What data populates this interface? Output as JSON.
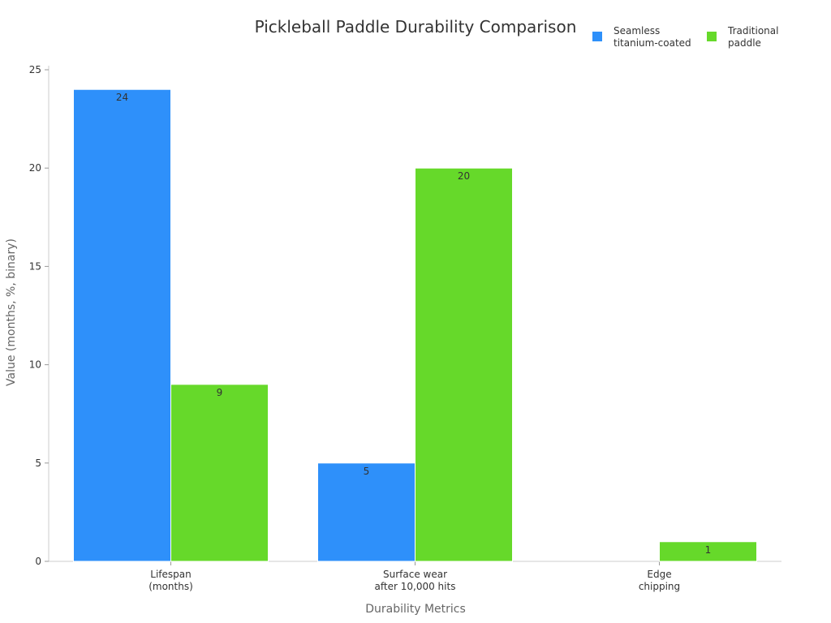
{
  "chart_data": {
    "type": "bar",
    "title": "Pickleball Paddle Durability Comparison",
    "xlabel": "Durability Metrics",
    "ylabel": "Value (months, %, binary)",
    "categories": [
      [
        "Lifespan",
        "(months)"
      ],
      [
        "Surface wear",
        "after 10,000 hits"
      ],
      [
        "Edge",
        "chipping"
      ]
    ],
    "series": [
      {
        "name": [
          "Seamless",
          "titanium-coated"
        ],
        "color": "#2e90fa",
        "values": [
          24,
          5,
          0
        ]
      },
      {
        "name": [
          "Traditional",
          "paddle"
        ],
        "color": "#66d92a",
        "values": [
          9,
          20,
          1
        ]
      }
    ],
    "ylim": [
      0,
      25
    ],
    "yticks": [
      0,
      5,
      10,
      15,
      20,
      25
    ],
    "grid": false,
    "legend_position": "top-right"
  }
}
